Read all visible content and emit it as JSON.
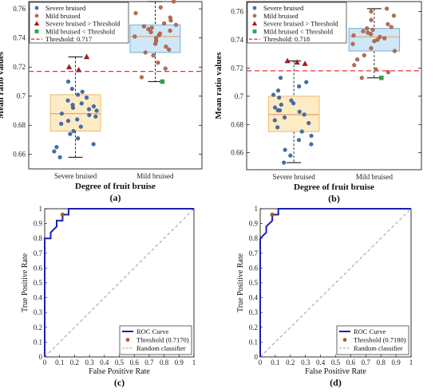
{
  "chart_data": [
    {
      "panel": "(a)",
      "type": "box",
      "xlabel": "Degree of fruit bruise",
      "ylabel": "Mean ratio values",
      "categories": [
        "Severe bruised",
        "Mild bruised"
      ],
      "ylim": [
        0.65,
        0.765
      ],
      "yticks": [
        0.66,
        0.68,
        0.7,
        0.72,
        0.74,
        0.76
      ],
      "threshold": 0.717,
      "legend": [
        "Severe bruised",
        "Mild bruised",
        "Severe bruised > Threshold",
        "Mild bruised < Threshold",
        "Threshold: 0.717"
      ],
      "boxes": [
        {
          "q1": 0.676,
          "median": 0.688,
          "q3": 0.701,
          "wlow": 0.658,
          "whigh": 0.727
        },
        {
          "q1": 0.73,
          "median": 0.741,
          "q3": 0.749,
          "wlow": 0.71,
          "whigh": 0.765
        }
      ],
      "points": [
        [
          0.662,
          0.667,
          0.665,
          0.671,
          0.674,
          0.676,
          0.679,
          0.681,
          0.683,
          0.684,
          0.686,
          0.687,
          0.688,
          0.69,
          0.691,
          0.692,
          0.693,
          0.694,
          0.695,
          0.697,
          0.699,
          0.701,
          0.703,
          0.705,
          0.658,
          0.71
        ],
        [
          0.713,
          0.719,
          0.723,
          0.728,
          0.73,
          0.732,
          0.734,
          0.736,
          0.738,
          0.74,
          0.741,
          0.742,
          0.743,
          0.744,
          0.745,
          0.746,
          0.747,
          0.748,
          0.749,
          0.75,
          0.752,
          0.754,
          0.757,
          0.761,
          0.765
        ]
      ],
      "above_threshold": [
        0.72,
        0.718,
        0.727
      ],
      "below_threshold": [
        0.71
      ]
    },
    {
      "panel": "(b)",
      "type": "box",
      "xlabel": "Degree of fruit bruise",
      "ylabel": "Mean ratio values",
      "categories": [
        "Severe bruised",
        "Mild bruised"
      ],
      "ylim": [
        0.648,
        0.767
      ],
      "yticks": [
        0.66,
        0.68,
        0.7,
        0.72,
        0.74,
        0.76
      ],
      "threshold": 0.718,
      "legend": [
        "Severe bruised",
        "Mild bruised",
        "Severe bruised > Threshold",
        "Mild bruised < Threshold",
        "Threshold: 0.718"
      ],
      "boxes": [
        {
          "q1": 0.675,
          "median": 0.687,
          "q3": 0.7,
          "wlow": 0.653,
          "whigh": 0.725
        },
        {
          "q1": 0.732,
          "median": 0.742,
          "q3": 0.748,
          "wlow": 0.713,
          "whigh": 0.762
        }
      ],
      "points": [
        [
          0.653,
          0.658,
          0.662,
          0.666,
          0.669,
          0.672,
          0.675,
          0.678,
          0.681,
          0.683,
          0.685,
          0.687,
          0.689,
          0.69,
          0.692,
          0.694,
          0.695,
          0.697,
          0.699,
          0.701,
          0.704,
          0.707,
          0.71,
          0.713,
          0.69
        ],
        [
          0.713,
          0.717,
          0.719,
          0.722,
          0.726,
          0.729,
          0.732,
          0.734,
          0.737,
          0.739,
          0.74,
          0.741,
          0.742,
          0.743,
          0.744,
          0.745,
          0.746,
          0.747,
          0.748,
          0.749,
          0.751,
          0.754,
          0.757,
          0.76,
          0.762
        ]
      ],
      "above_threshold": [
        0.725,
        0.724,
        0.723
      ],
      "below_threshold": [
        0.713
      ]
    },
    {
      "panel": "(c)",
      "type": "line",
      "xlabel": "False Positive Rate",
      "ylabel": "True Positive Rate",
      "xlim": [
        0,
        1
      ],
      "ylim": [
        0,
        1
      ],
      "ticks": [
        0,
        0.1,
        0.2,
        0.3,
        0.4,
        0.5,
        0.6,
        0.7,
        0.8,
        0.9,
        1
      ],
      "roc": [
        [
          0,
          0
        ],
        [
          0,
          0.8
        ],
        [
          0.04,
          0.8
        ],
        [
          0.04,
          0.84
        ],
        [
          0.08,
          0.88
        ],
        [
          0.08,
          0.92
        ],
        [
          0.12,
          0.92
        ],
        [
          0.12,
          0.96
        ],
        [
          0.16,
          0.96
        ],
        [
          0.16,
          1.0
        ],
        [
          1,
          1
        ]
      ],
      "threshold_point": [
        0.12,
        0.96
      ],
      "legend": [
        "ROC Curve",
        "Threshold (0.7170)",
        "Random classifier"
      ]
    },
    {
      "panel": "(d)",
      "type": "line",
      "xlabel": "False Positive Rate",
      "ylabel": "True Positive Rate",
      "xlim": [
        0,
        1
      ],
      "ylim": [
        0,
        1
      ],
      "ticks": [
        0,
        0.1,
        0.2,
        0.3,
        0.4,
        0.5,
        0.6,
        0.7,
        0.8,
        0.9,
        1
      ],
      "roc": [
        [
          0,
          0
        ],
        [
          0,
          0.8
        ],
        [
          0.04,
          0.84
        ],
        [
          0.04,
          0.88
        ],
        [
          0.08,
          0.92
        ],
        [
          0.08,
          0.96
        ],
        [
          0.12,
          0.96
        ],
        [
          0.12,
          1.0
        ],
        [
          1,
          1
        ]
      ],
      "threshold_point": [
        0.08,
        0.96
      ],
      "legend": [
        "ROC Curve",
        "Threshold (0.7180)",
        "Random classifier"
      ]
    }
  ],
  "colors": {
    "severe": "#3f6fb5",
    "mild": "#c26a4a",
    "above": "#b5151b",
    "below": "#2aa84a",
    "box_severe": "#fdebc4",
    "box_mild": "#cfe7f6",
    "median": "#f0a070",
    "threshold": "#e8323c",
    "roc": "#1f1fb0"
  }
}
